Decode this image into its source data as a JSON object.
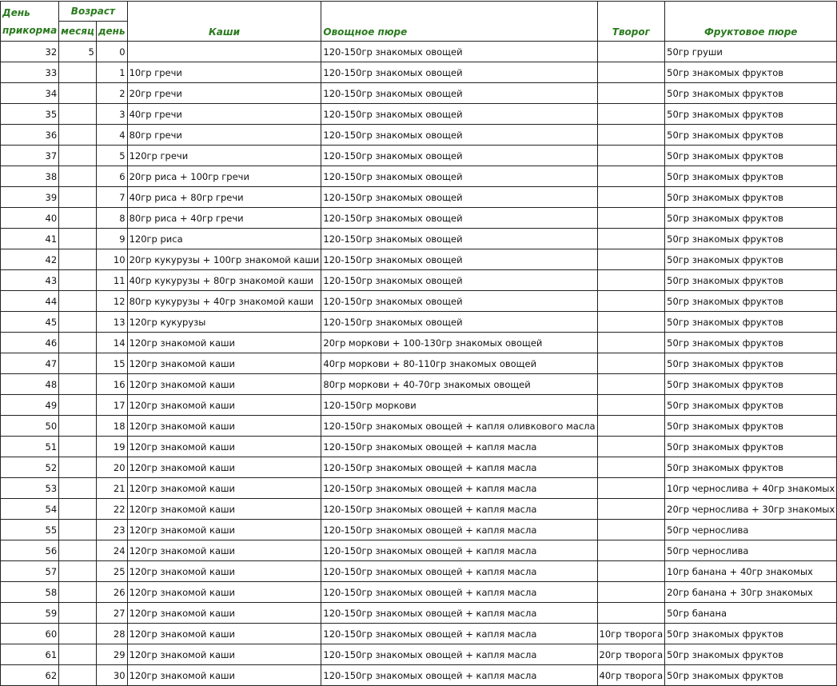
{
  "header": {
    "day": "День прикорма",
    "age": "Возраст",
    "month": "месяц",
    "age_day": "день",
    "porridge": "Каши",
    "vegetable": "Овощное пюре",
    "cottage": "Творог",
    "fruit": "Фруктовое пюре"
  },
  "header_color": "#2a7a1e",
  "rows": [
    [
      "32",
      "5",
      "0",
      "",
      "120-150гр знакомых овощей",
      "",
      "50гр груши"
    ],
    [
      "33",
      "",
      "1",
      "10гр гречи",
      "120-150гр знакомых овощей",
      "",
      "50гр знакомых фруктов"
    ],
    [
      "34",
      "",
      "2",
      "20гр гречи",
      "120-150гр знакомых овощей",
      "",
      "50гр знакомых фруктов"
    ],
    [
      "35",
      "",
      "3",
      "40гр гречи",
      "120-150гр знакомых овощей",
      "",
      "50гр знакомых фруктов"
    ],
    [
      "36",
      "",
      "4",
      "80гр гречи",
      "120-150гр знакомых овощей",
      "",
      "50гр знакомых фруктов"
    ],
    [
      "37",
      "",
      "5",
      "120гр гречи",
      "120-150гр знакомых овощей",
      "",
      "50гр знакомых фруктов"
    ],
    [
      "38",
      "",
      "6",
      "20гр риса + 100гр гречи",
      "120-150гр знакомых овощей",
      "",
      "50гр знакомых фруктов"
    ],
    [
      "39",
      "",
      "7",
      "40гр риса + 80гр гречи",
      "120-150гр знакомых овощей",
      "",
      "50гр знакомых фруктов"
    ],
    [
      "40",
      "",
      "8",
      "80гр риса + 40гр гречи",
      "120-150гр знакомых овощей",
      "",
      "50гр знакомых фруктов"
    ],
    [
      "41",
      "",
      "9",
      "120гр риса",
      "120-150гр знакомых овощей",
      "",
      "50гр знакомых фруктов"
    ],
    [
      "42",
      "",
      "10",
      "20гр кукурузы + 100гр знакомой каши",
      "120-150гр знакомых овощей",
      "",
      "50гр знакомых фруктов"
    ],
    [
      "43",
      "",
      "11",
      "40гр кукурузы + 80гр знакомой каши",
      "120-150гр знакомых овощей",
      "",
      "50гр знакомых фруктов"
    ],
    [
      "44",
      "",
      "12",
      "80гр кукурузы + 40гр знакомой каши",
      "120-150гр знакомых овощей",
      "",
      "50гр знакомых фруктов"
    ],
    [
      "45",
      "",
      "13",
      "120гр кукурузы",
      "120-150гр знакомых овощей",
      "",
      "50гр знакомых фруктов"
    ],
    [
      "46",
      "",
      "14",
      "120гр знакомой каши",
      "20гр моркови + 100-130гр знакомых овощей",
      "",
      "50гр знакомых фруктов"
    ],
    [
      "47",
      "",
      "15",
      "120гр знакомой каши",
      "40гр моркови + 80-110гр знакомых овощей",
      "",
      "50гр знакомых фруктов"
    ],
    [
      "48",
      "",
      "16",
      "120гр знакомой каши",
      "80гр моркови + 40-70гр знакомых овощей",
      "",
      "50гр знакомых фруктов"
    ],
    [
      "49",
      "",
      "17",
      "120гр знакомой каши",
      "120-150гр моркови",
      "",
      "50гр знакомых фруктов"
    ],
    [
      "50",
      "",
      "18",
      "120гр знакомой каши",
      "120-150гр знакомых овощей + капля оливкового масла",
      "",
      "50гр знакомых фруктов"
    ],
    [
      "51",
      "",
      "19",
      "120гр знакомой каши",
      "120-150гр знакомых овощей + капля масла",
      "",
      "50гр знакомых фруктов"
    ],
    [
      "52",
      "",
      "20",
      "120гр знакомой каши",
      "120-150гр знакомых овощей + капля масла",
      "",
      "50гр знакомых фруктов"
    ],
    [
      "53",
      "",
      "21",
      "120гр знакомой каши",
      "120-150гр знакомых овощей + капля масла",
      "",
      "10гр чернослива + 40гр знакомых"
    ],
    [
      "54",
      "",
      "22",
      "120гр знакомой каши",
      "120-150гр знакомых овощей + капля масла",
      "",
      "20гр чернослива + 30гр знакомых"
    ],
    [
      "55",
      "",
      "23",
      "120гр знакомой каши",
      "120-150гр знакомых овощей + капля масла",
      "",
      "50гр чернослива"
    ],
    [
      "56",
      "",
      "24",
      "120гр знакомой каши",
      "120-150гр знакомых овощей + капля масла",
      "",
      "50гр чернослива"
    ],
    [
      "57",
      "",
      "25",
      "120гр знакомой каши",
      "120-150гр знакомых овощей + капля масла",
      "",
      "10гр банана + 40гр знакомых"
    ],
    [
      "58",
      "",
      "26",
      "120гр знакомой каши",
      "120-150гр знакомых овощей + капля масла",
      "",
      "20гр банана + 30гр знакомых"
    ],
    [
      "59",
      "",
      "27",
      "120гр знакомой каши",
      "120-150гр знакомых овощей + капля масла",
      "",
      "50гр банана"
    ],
    [
      "60",
      "",
      "28",
      "120гр знакомой каши",
      "120-150гр знакомых овощей + капля масла",
      "10гр творога",
      "50гр знакомых фруктов"
    ],
    [
      "61",
      "",
      "29",
      "120гр знакомой каши",
      "120-150гр знакомых овощей + капля масла",
      "20гр творога",
      "50гр знакомых фруктов"
    ],
    [
      "62",
      "",
      "30",
      "120гр знакомой каши",
      "120-150гр знакомых овощей + капля масла",
      "40гр творога",
      "50гр знакомых фруктов"
    ]
  ]
}
